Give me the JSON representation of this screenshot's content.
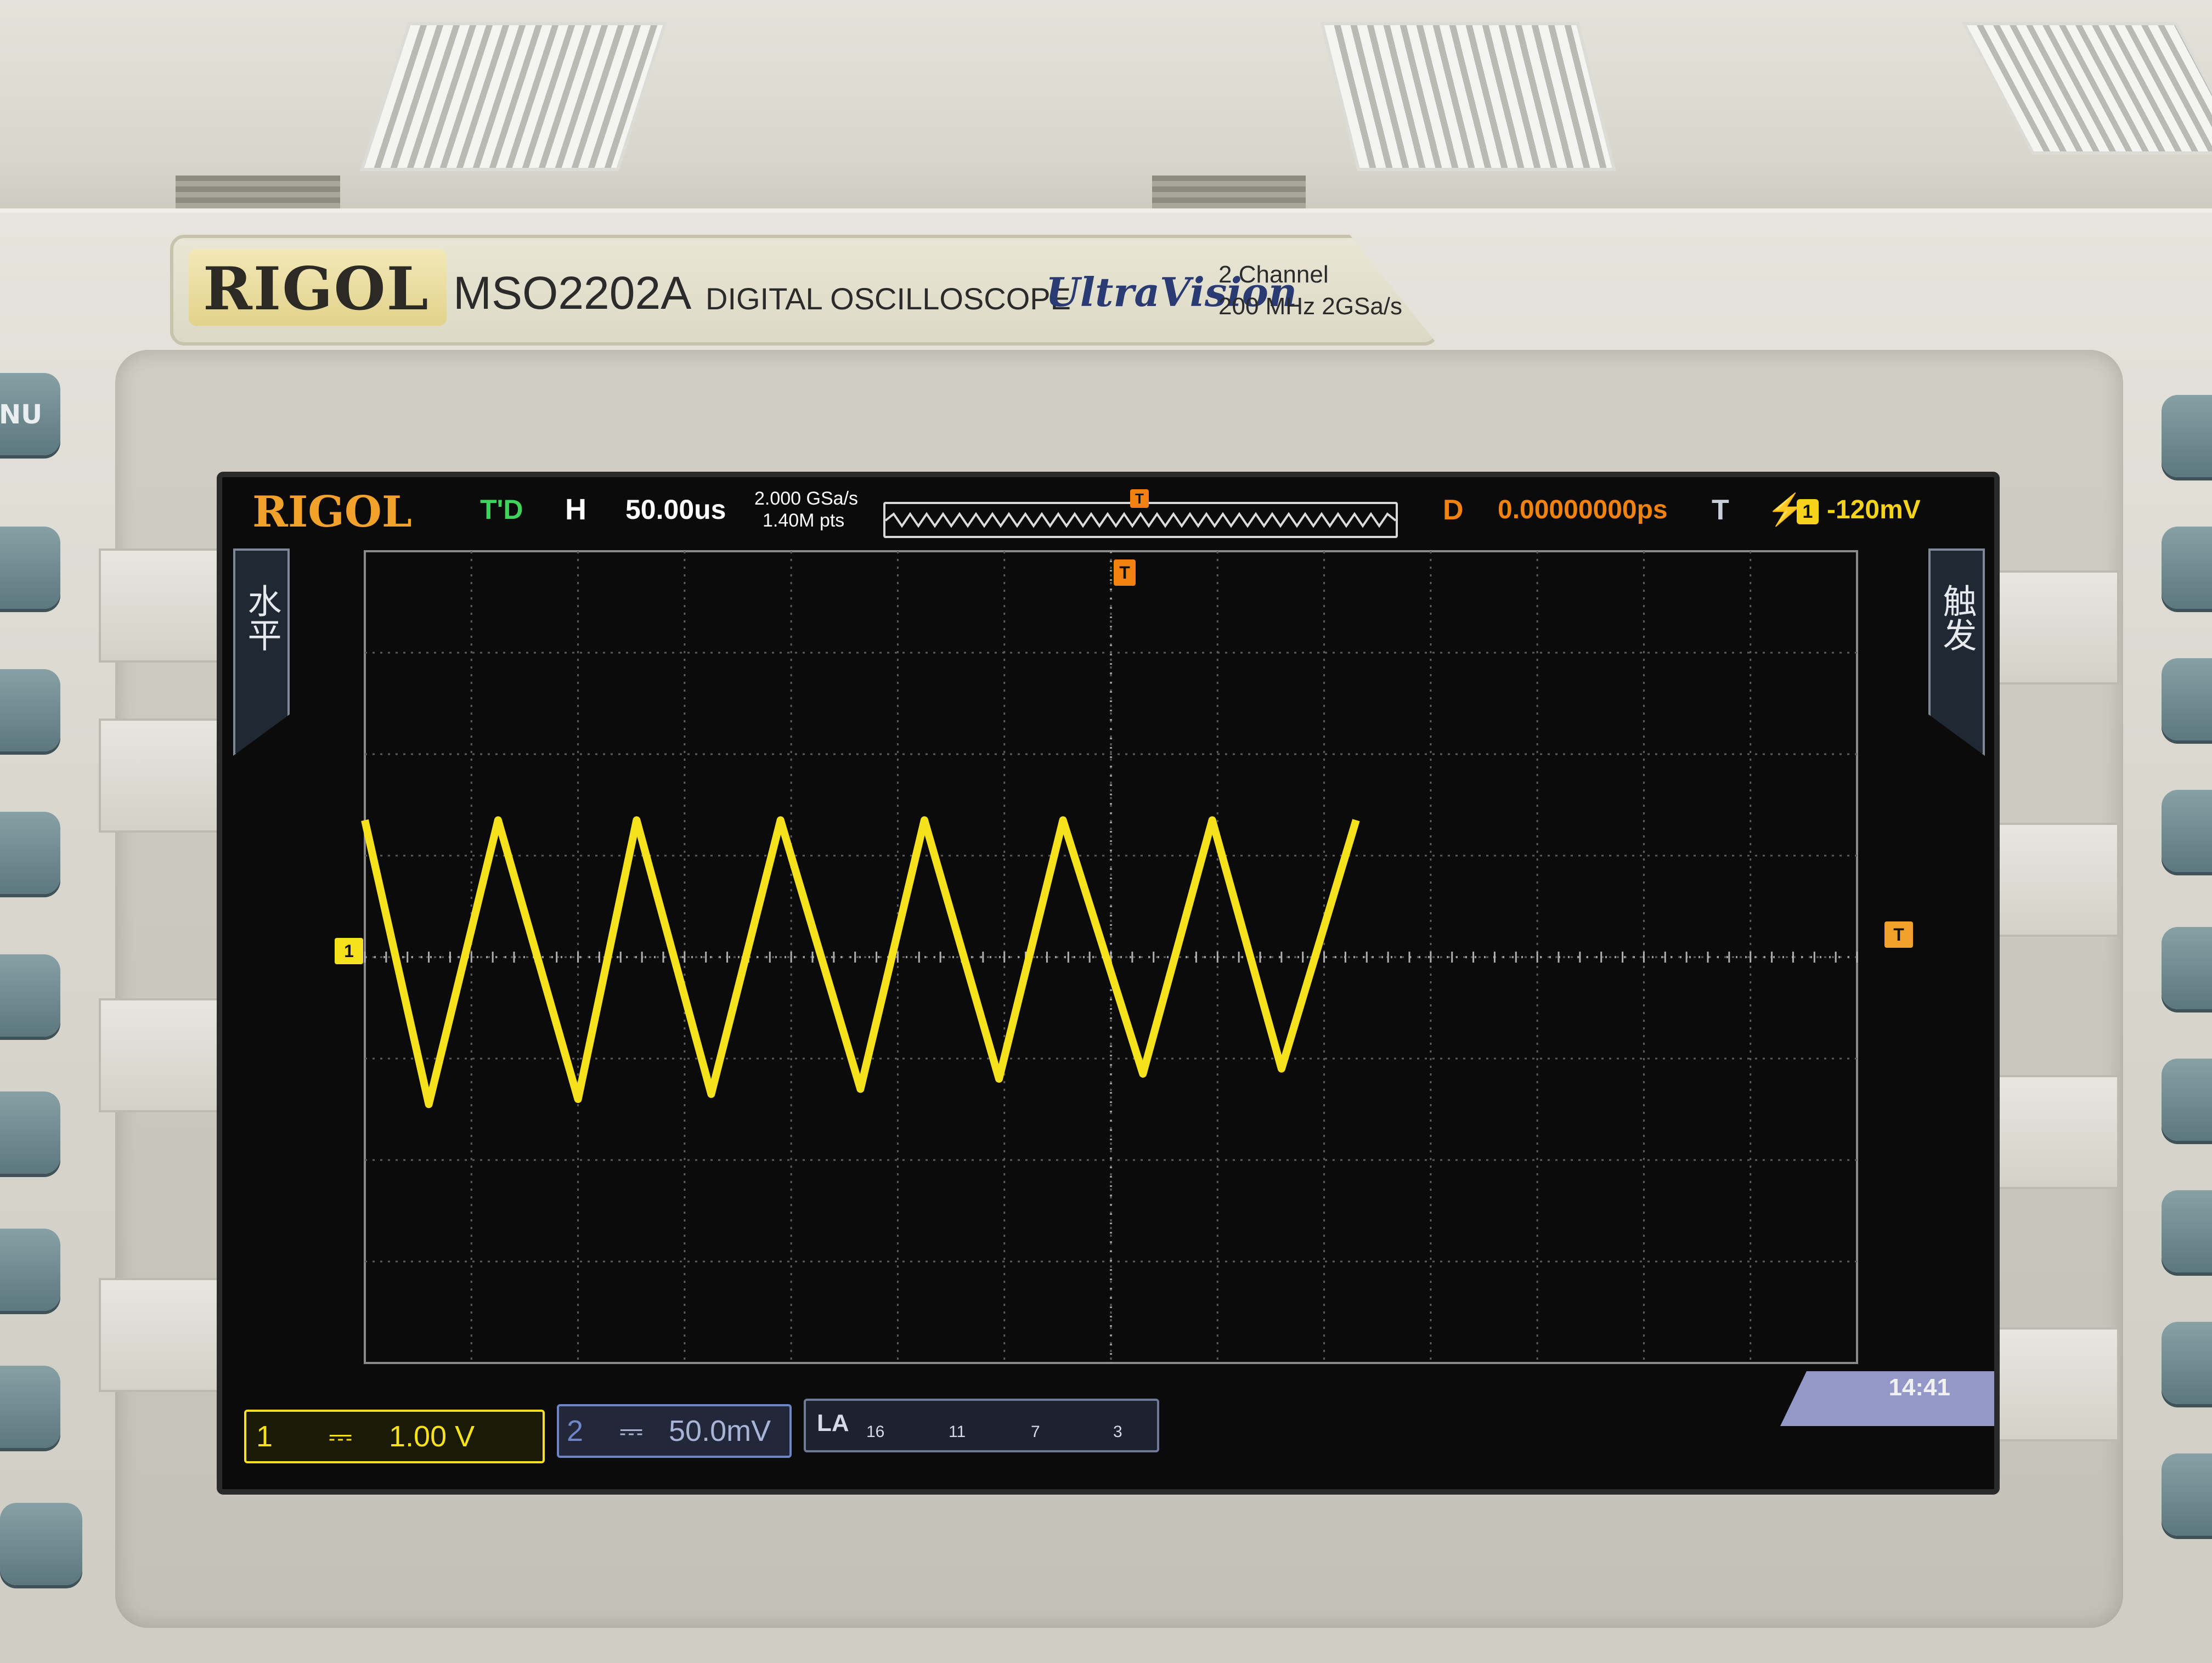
{
  "front_panel": {
    "brand": "RIGOL",
    "model": "MSO2202A",
    "product_type": "DIGITAL OSCILLOSCOPE",
    "series_logo": "UltraVision",
    "channels_spec": "2 Channel",
    "bandwidth_spec": "200 MHz  2GSa/s",
    "left_key_label": "NU"
  },
  "screen": {
    "logo": "RIGOL",
    "run_status": "T'D",
    "horizontal": {
      "label": "H",
      "timebase": "50.00us"
    },
    "sample_rate": "2.000 GSa/s",
    "memory_depth": "1.40M pts",
    "delay": {
      "label": "D",
      "value": "0.00000000ps"
    },
    "trigger": {
      "label": "T",
      "source": "1",
      "level": "-120mV",
      "edge_icon": "rising-edge-icon"
    },
    "left_tab": "水平",
    "right_tab": "触发",
    "channel1": {
      "number": "1",
      "coupling_icon": "dc-coupling-icon",
      "scale": "1.00 V",
      "color": "#f5e11c"
    },
    "channel2": {
      "number": "2",
      "coupling_icon": "dc-coupling-icon",
      "scale": "50.0mV",
      "color": "#6f86c6"
    },
    "la": {
      "label": "LA",
      "groups": [
        "16",
        "11",
        "7",
        "3"
      ]
    },
    "clock": "14:41",
    "ch1_marker": "1",
    "trigger_marker": "T"
  },
  "waveform": {
    "type": "triangle",
    "color": "#f5e11c",
    "vertical_scale_V_per_div": 1.0,
    "timebase_us_per_div": 50,
    "points": [
      [
        0.0,
        1.35
      ],
      [
        0.6,
        -1.45
      ],
      [
        1.25,
        1.35
      ],
      [
        2.0,
        -1.4
      ],
      [
        2.55,
        1.35
      ],
      [
        3.25,
        -1.35
      ],
      [
        3.9,
        1.35
      ],
      [
        4.65,
        -1.3
      ],
      [
        5.25,
        1.35
      ],
      [
        5.95,
        -1.2
      ],
      [
        6.55,
        1.35
      ],
      [
        7.3,
        -1.15
      ],
      [
        7.95,
        1.35
      ],
      [
        8.6,
        -1.1
      ],
      [
        9.3,
        1.35
      ]
    ]
  }
}
